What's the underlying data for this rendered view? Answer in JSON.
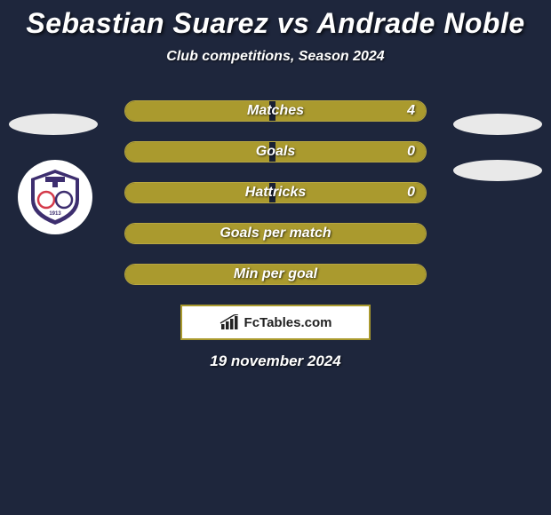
{
  "header": {
    "title": "Sebastian Suarez vs Andrade Noble",
    "subtitle": "Club competitions, Season 2024"
  },
  "colors": {
    "background": "#1e263c",
    "bar_fill": "#aa9a2e",
    "bar_border": "#b8a742",
    "ellipse": "#e9e9e9",
    "footer_bg": "#ffffff"
  },
  "stats": [
    {
      "label": "Matches",
      "left_pct": 48,
      "right_pct": 50,
      "value": "4"
    },
    {
      "label": "Goals",
      "left_pct": 48,
      "right_pct": 50,
      "value": "0"
    },
    {
      "label": "Hattricks",
      "left_pct": 48,
      "right_pct": 50,
      "value": "0"
    },
    {
      "label": "Goals per match",
      "left_pct": 100,
      "right_pct": 0,
      "value": ""
    },
    {
      "label": "Min per goal",
      "left_pct": 100,
      "right_pct": 0,
      "value": ""
    }
  ],
  "footer": {
    "brand": "FcTables.com",
    "date": "19 november 2024"
  },
  "club_badge": {
    "outer": "#3d2e6f",
    "inner": "#ffffff",
    "ring1": "#d43a4a",
    "ring2": "#3d2e6f"
  }
}
